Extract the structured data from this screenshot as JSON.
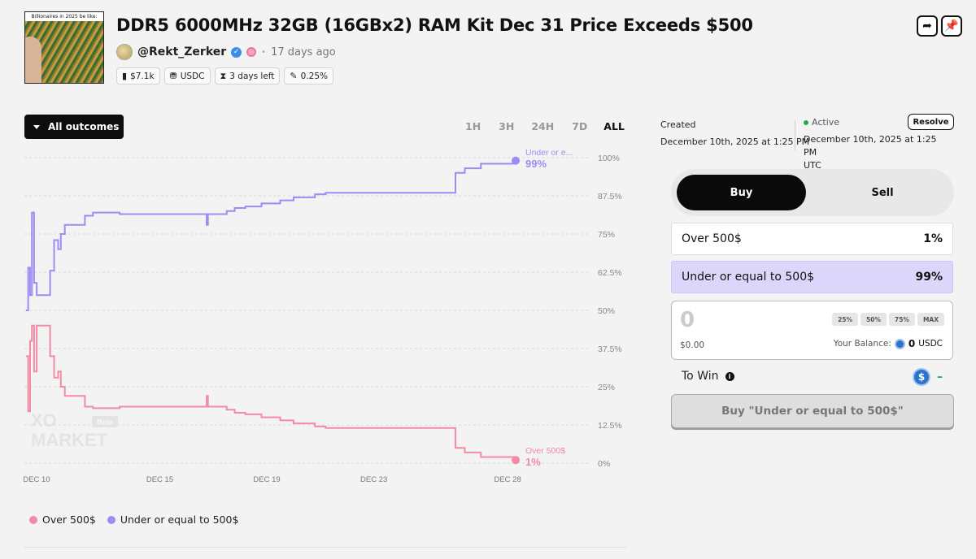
{
  "header": {
    "thumbnail_caption": "Billionaires in 2025 be like:",
    "title": "DDR5 6000MHz 32GB (16GBx2) RAM Kit Dec 31 Price Exceeds $500",
    "username": "@Rekt_Zerker",
    "time_ago": "17 days ago",
    "chips": {
      "volume": "$7.1k",
      "currency": "USDC",
      "time_left": "3 days left",
      "fee": "0.25%"
    }
  },
  "chart": {
    "outcomes_label": "All outcomes",
    "ranges": [
      "1H",
      "3H",
      "24H",
      "7D",
      "ALL"
    ],
    "active_range": "ALL",
    "watermark_line1": "XO",
    "watermark_line2": "MARKET",
    "watermark_badge": "Beta",
    "end_labels": {
      "under_name": "Under or e...",
      "under_value": "99%",
      "over_name": "Over 500$",
      "over_value": "1%"
    },
    "legend": [
      "Over 500$",
      "Under or equal to 500$"
    ]
  },
  "chart_data": {
    "type": "line",
    "title": "",
    "x_tick_labels": [
      "DEC 10",
      "DEC 15",
      "DEC 19",
      "DEC 23",
      "DEC 28"
    ],
    "y_tick_labels": [
      "100%",
      "87.5%",
      "75%",
      "62.5%",
      "50%",
      "37.5%",
      "25%",
      "12.5%",
      "0%"
    ],
    "ylim": [
      0,
      100
    ],
    "xlim": [
      10,
      28.3
    ],
    "series": [
      {
        "name": "Under or equal to 500$",
        "color": "#9d8cf2",
        "points": [
          [
            10.0,
            50
          ],
          [
            10.08,
            64
          ],
          [
            10.15,
            55
          ],
          [
            10.22,
            82
          ],
          [
            10.3,
            59
          ],
          [
            10.4,
            55
          ],
          [
            10.8,
            55
          ],
          [
            10.9,
            63
          ],
          [
            11.05,
            73
          ],
          [
            11.2,
            70
          ],
          [
            11.3,
            75
          ],
          [
            11.45,
            78
          ],
          [
            12.0,
            78
          ],
          [
            12.2,
            81
          ],
          [
            12.5,
            82
          ],
          [
            13.0,
            82
          ],
          [
            13.5,
            81.5
          ],
          [
            14.0,
            81.5
          ],
          [
            15.0,
            81.5
          ],
          [
            16.0,
            81.5
          ],
          [
            16.5,
            81.5
          ],
          [
            16.75,
            78
          ],
          [
            16.8,
            81.5
          ],
          [
            17.5,
            82.5
          ],
          [
            17.8,
            83.5
          ],
          [
            18.2,
            84
          ],
          [
            18.8,
            85
          ],
          [
            19.5,
            86
          ],
          [
            20.0,
            87
          ],
          [
            20.8,
            88
          ],
          [
            21.2,
            88.5
          ],
          [
            22.0,
            88.5
          ],
          [
            23.0,
            88.5
          ],
          [
            23.5,
            88.5
          ],
          [
            24.2,
            88.5
          ],
          [
            25.0,
            88.5
          ],
          [
            26.0,
            88.5
          ],
          [
            26.05,
            95
          ],
          [
            26.4,
            96.5
          ],
          [
            27.0,
            98
          ],
          [
            28.3,
            99
          ]
        ]
      },
      {
        "name": "Over 500$",
        "color": "#f28ba3",
        "points": [
          [
            10.0,
            35
          ],
          [
            10.08,
            17
          ],
          [
            10.15,
            40
          ],
          [
            10.22,
            45
          ],
          [
            10.3,
            30
          ],
          [
            10.4,
            45
          ],
          [
            10.8,
            45
          ],
          [
            10.9,
            35
          ],
          [
            11.05,
            28
          ],
          [
            11.2,
            30
          ],
          [
            11.3,
            25
          ],
          [
            11.45,
            22
          ],
          [
            12.0,
            22
          ],
          [
            12.2,
            18.5
          ],
          [
            12.5,
            18
          ],
          [
            13.0,
            18
          ],
          [
            13.5,
            18.5
          ],
          [
            14.0,
            18.5
          ],
          [
            15.0,
            18.5
          ],
          [
            16.0,
            18.5
          ],
          [
            16.5,
            18.5
          ],
          [
            16.75,
            22
          ],
          [
            16.8,
            18.5
          ],
          [
            17.5,
            17.5
          ],
          [
            17.8,
            16.5
          ],
          [
            18.2,
            16
          ],
          [
            18.8,
            15
          ],
          [
            19.5,
            14
          ],
          [
            20.0,
            13
          ],
          [
            20.8,
            12
          ],
          [
            21.2,
            11.5
          ],
          [
            22.0,
            11.5
          ],
          [
            23.0,
            11.5
          ],
          [
            23.5,
            11.5
          ],
          [
            24.2,
            11.5
          ],
          [
            25.0,
            11.5
          ],
          [
            26.0,
            11.5
          ],
          [
            26.05,
            5
          ],
          [
            26.4,
            3.5
          ],
          [
            27.0,
            2
          ],
          [
            28.3,
            1
          ]
        ]
      }
    ]
  },
  "panel": {
    "created_label": "Created",
    "created_date": "December 10th, 2025 at 1:25 PM",
    "status": "Active",
    "status_date": "December 10th, 2025 at 1:25 PM",
    "status_tz": "UTC",
    "resolve_label": "Resolve",
    "tab_buy": "Buy",
    "tab_sell": "Sell",
    "outcomes": [
      {
        "name": "Over 500$",
        "pct": "1%"
      },
      {
        "name": "Under or equal to 500$",
        "pct": "99%"
      }
    ],
    "amount": "0",
    "amount_usd": "$0.00",
    "pct_buttons": [
      "25%",
      "50%",
      "75%",
      "MAX"
    ],
    "balance_label": "Your Balance:",
    "balance_value": "0",
    "balance_currency": "USDC",
    "to_win_label": "To Win",
    "to_win_value": "–",
    "buy_button": "Buy \"Under or equal to 500$\"",
    "colors": {
      "accent_purple": "#9d8cf2",
      "accent_pink": "#f28ba3",
      "active_green": "#2aa84a"
    }
  }
}
